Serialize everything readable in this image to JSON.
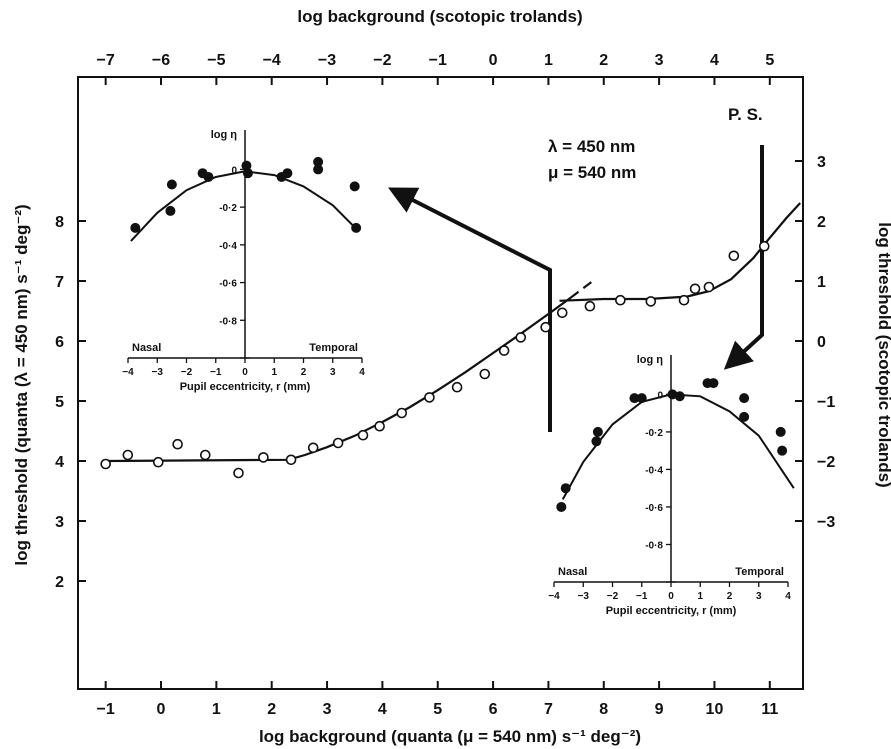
{
  "chart_data": [
    {
      "type": "scatter",
      "name": "main",
      "xlabel_bottom": "log background (quanta (μ = 540 nm) s⁻¹ deg⁻²)",
      "xlabel_top": "log background (scotopic trolands)",
      "ylabel_left": "log threshold (quanta (λ = 450 nm) s⁻¹ deg⁻²)",
      "ylabel_right": "log threshold (scotopic trolands)",
      "xlim": [
        -1.5,
        11.6
      ],
      "ylim": [
        0.2,
        10.4
      ],
      "x_ticks": [
        -1,
        0,
        1,
        2,
        3,
        4,
        5,
        6,
        7,
        8,
        9,
        10,
        11
      ],
      "x_tick_labels": [
        "−1",
        "0",
        "1",
        "2",
        "3",
        "4",
        "5",
        "6",
        "7",
        "8",
        "9",
        "10",
        "11"
      ],
      "y_ticks": [
        2,
        3,
        4,
        5,
        6,
        7,
        8
      ],
      "y_tick_labels": [
        "2",
        "3",
        "4",
        "5",
        "6",
        "7",
        "8"
      ],
      "top_ticks_scotopic": [
        -7,
        -6,
        -5,
        -4,
        -3,
        -2,
        -1,
        0,
        1,
        2,
        3,
        4,
        5
      ],
      "top_tick_labels": [
        "−7",
        "−6",
        "−5",
        "−4",
        "−3",
        "−2",
        "−1",
        "0",
        "1",
        "2",
        "3",
        "4",
        "5"
      ],
      "top_offset": 6.0,
      "right_ticks_scotopic": [
        -3,
        -2,
        -1,
        0,
        1,
        2,
        3
      ],
      "right_tick_labels": [
        "−3",
        "−2",
        "−1",
        "0",
        "1",
        "2",
        "3"
      ],
      "right_offset": 6.0,
      "annotations": [
        "λ = 450 nm",
        "μ = 540 nm",
        "P. S."
      ],
      "series": [
        {
          "marker": "open-circle",
          "x": [
            -1.0,
            -0.6,
            -0.05,
            0.3,
            0.8,
            1.4,
            1.85,
            2.35,
            2.75,
            3.2,
            3.65,
            3.95,
            4.35,
            4.85,
            5.35,
            5.85,
            6.2,
            6.5,
            6.95,
            7.25,
            7.75,
            8.3,
            8.85,
            9.45,
            9.65,
            9.9,
            10.35,
            10.9
          ],
          "y": [
            3.95,
            4.1,
            3.98,
            4.28,
            4.1,
            3.8,
            4.06,
            4.02,
            4.22,
            4.3,
            4.43,
            4.58,
            4.8,
            5.06,
            5.23,
            5.45,
            5.84,
            6.06,
            6.23,
            6.47,
            6.58,
            6.68,
            6.66,
            6.68,
            6.87,
            6.9,
            7.42,
            7.58
          ]
        }
      ],
      "fits": [
        {
          "style": "solid",
          "x": [
            -1.0,
            2.3,
            2.6,
            3.0,
            3.5,
            4.0,
            4.5,
            5.0,
            5.5,
            6.0,
            6.5,
            7.0,
            7.4
          ],
          "y": [
            4.0,
            4.02,
            4.1,
            4.23,
            4.42,
            4.65,
            4.9,
            5.18,
            5.48,
            5.8,
            6.12,
            6.45,
            6.72
          ]
        },
        {
          "style": "dashed",
          "x": [
            7.4,
            7.8
          ],
          "y": [
            6.72,
            7.0
          ]
        },
        {
          "style": "solid",
          "x": [
            7.2,
            8.0,
            8.8,
            9.5,
            9.9,
            10.3,
            10.7,
            11.0,
            11.3,
            11.55
          ],
          "y": [
            6.67,
            6.7,
            6.7,
            6.74,
            6.83,
            7.03,
            7.38,
            7.72,
            8.05,
            8.3
          ]
        }
      ]
    },
    {
      "type": "scatter",
      "name": "inset-left",
      "ylabel": "log η",
      "xlabel": "Pupil eccentricity, r (mm)",
      "side_labels": [
        "Nasal",
        "Temporal"
      ],
      "xlim": [
        -4,
        4
      ],
      "ylim": [
        -1.0,
        0.05
      ],
      "x_ticks": [
        -4,
        -3,
        -2,
        -1,
        0,
        1,
        2,
        3,
        4
      ],
      "x_tick_labels": [
        "−4",
        "−3",
        "−2",
        "−1",
        "0",
        "1",
        "2",
        "3",
        "4"
      ],
      "y_ticks": [
        0,
        -0.2,
        -0.4,
        -0.6,
        -0.8
      ],
      "y_tick_labels": [
        "0",
        "-0·2",
        "-0·4",
        "-0·6",
        "-0·8"
      ],
      "series": [
        {
          "marker": "filled-circle",
          "x": [
            -3.75,
            -2.55,
            -2.5,
            -1.45,
            -1.25,
            0.05,
            0.1,
            1.25,
            1.45,
            2.5,
            2.5,
            3.75,
            3.8
          ],
          "y": [
            -0.31,
            -0.22,
            -0.08,
            -0.02,
            -0.04,
            0.02,
            -0.02,
            -0.04,
            -0.02,
            0.04,
            0.0,
            -0.09,
            -0.31
          ]
        }
      ],
      "fit": {
        "style": "solid",
        "x": [
          -3.9,
          -3.0,
          -2.0,
          -1.0,
          0.0,
          1.0,
          2.0,
          3.0,
          3.9
        ],
        "y": [
          -0.38,
          -0.23,
          -0.11,
          -0.04,
          -0.01,
          -0.03,
          -0.09,
          -0.19,
          -0.33
        ]
      }
    },
    {
      "type": "scatter",
      "name": "inset-right",
      "ylabel": "log η",
      "xlabel": "Pupil eccentricity, r (mm)",
      "side_labels": [
        "Nasal",
        "Temporal"
      ],
      "xlim": [
        -4,
        4
      ],
      "ylim": [
        -1.0,
        0.05
      ],
      "x_ticks": [
        -4,
        -3,
        -2,
        -1,
        0,
        1,
        2,
        3,
        4
      ],
      "x_tick_labels": [
        "−4",
        "−3",
        "−2",
        "−1",
        "0",
        "1",
        "2",
        "3",
        "4"
      ],
      "y_ticks": [
        0,
        -0.2,
        -0.4,
        -0.6,
        -0.8
      ],
      "y_tick_labels": [
        "0",
        "-0·2",
        "-0·4",
        "-0·6",
        "-0·8"
      ],
      "series": [
        {
          "marker": "filled-circle",
          "x": [
            -3.75,
            -3.6,
            -2.55,
            -2.5,
            -1.25,
            -1.0,
            0.05,
            0.3,
            1.25,
            1.45,
            2.5,
            2.5,
            3.75,
            3.8
          ],
          "y": [
            -0.6,
            -0.5,
            -0.25,
            -0.2,
            -0.02,
            -0.02,
            0.0,
            -0.01,
            0.06,
            0.06,
            -0.02,
            -0.12,
            -0.2,
            -0.3
          ]
        }
      ],
      "fit": {
        "style": "solid",
        "x": [
          -3.7,
          -3.0,
          -2.0,
          -1.0,
          0.0,
          1.0,
          2.0,
          3.0,
          4.2
        ],
        "y": [
          -0.56,
          -0.36,
          -0.16,
          -0.04,
          0.0,
          -0.01,
          -0.09,
          -0.22,
          -0.5
        ]
      }
    }
  ]
}
